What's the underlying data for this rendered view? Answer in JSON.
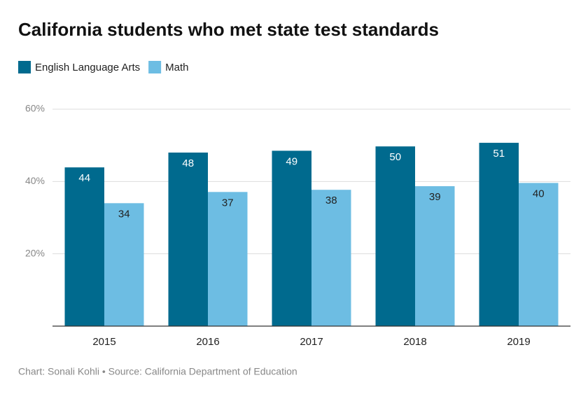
{
  "chart_data": {
    "type": "bar",
    "title": "California students who met state test standards",
    "footer": "Chart: Sonali Kohli • Source: California Department of Education",
    "categories": [
      "2015",
      "2016",
      "2017",
      "2018",
      "2019"
    ],
    "series": [
      {
        "name": "English Language Arts",
        "color": "#006a8e",
        "values": [
          43.9,
          48,
          48.5,
          49.7,
          50.7
        ],
        "value_labels": [
          "44",
          "48",
          "49",
          "50",
          "51"
        ]
      },
      {
        "name": "Math",
        "color": "#6dbde3",
        "values": [
          34,
          37.1,
          37.7,
          38.7,
          39.6
        ],
        "value_labels": [
          "34",
          "37",
          "38",
          "39",
          "40"
        ]
      }
    ],
    "ylim": [
      0,
      60
    ],
    "yticks": [
      {
        "value": 20,
        "label": "20%"
      },
      {
        "value": 40,
        "label": "40%"
      },
      {
        "value": 60,
        "label": "60%"
      }
    ],
    "grid": true,
    "legend": "top-left"
  }
}
